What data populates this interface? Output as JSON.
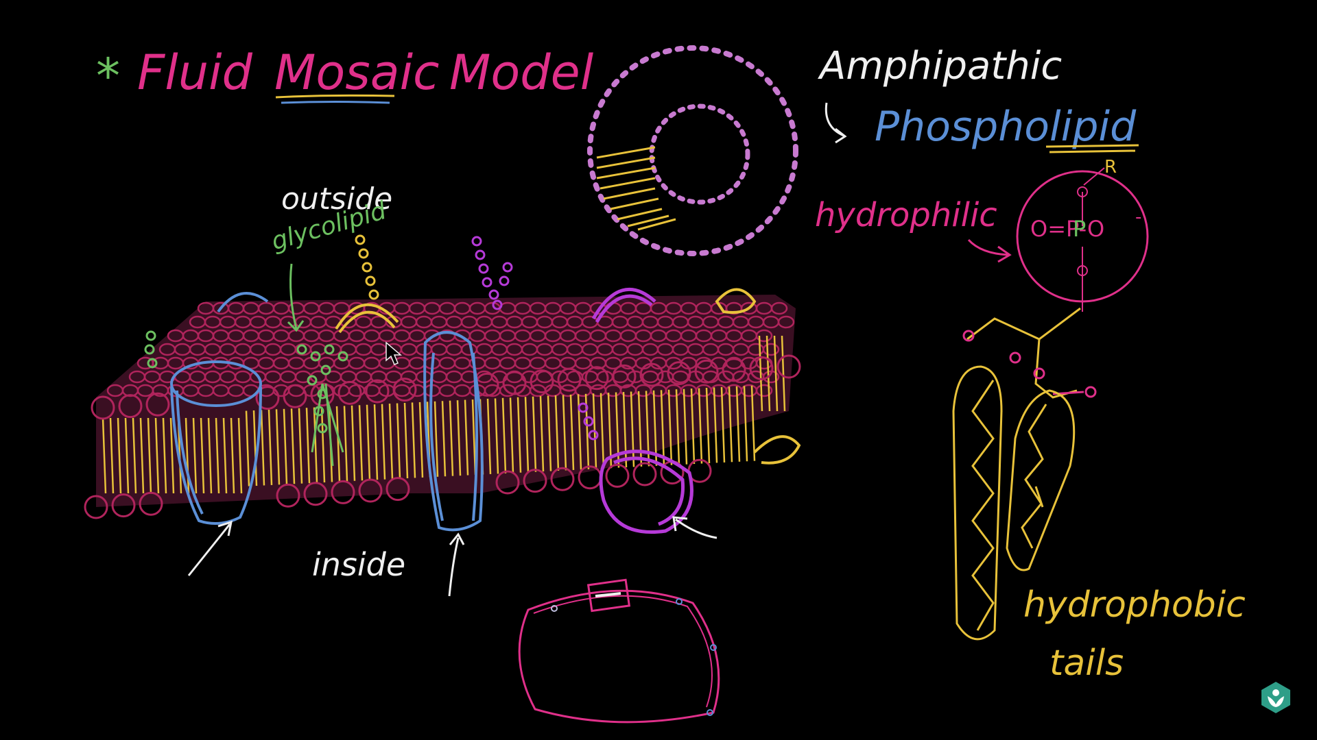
{
  "title": {
    "star": "*",
    "text_1": "Fluid",
    "text_2": "Mosaic",
    "text_3": "Model"
  },
  "labels": {
    "outside": "outside",
    "glycolipid": "glycolipid",
    "inside": "inside",
    "amphipathic": "Amphipathic",
    "phospholipid": "Phospholipid",
    "hydrophilic": "hydrophilic",
    "hydrophobic": "hydrophobic",
    "tails": "tails",
    "r_group": "R",
    "phosphate": "O=P-O",
    "charge": "-",
    "p": "P"
  },
  "icons": {
    "cursor": "arrow-cursor-icon",
    "logo": "khan-academy-logo-icon"
  },
  "colors": {
    "background": "#000000",
    "pink": "#e0308a",
    "magenta_head": "#b0245c",
    "yellow": "#e8c23a",
    "green": "#6cc060",
    "white": "#f0f0f0",
    "blue": "#5b8fd6",
    "purple": "#b63ad8",
    "teal": "#2e9e88"
  }
}
